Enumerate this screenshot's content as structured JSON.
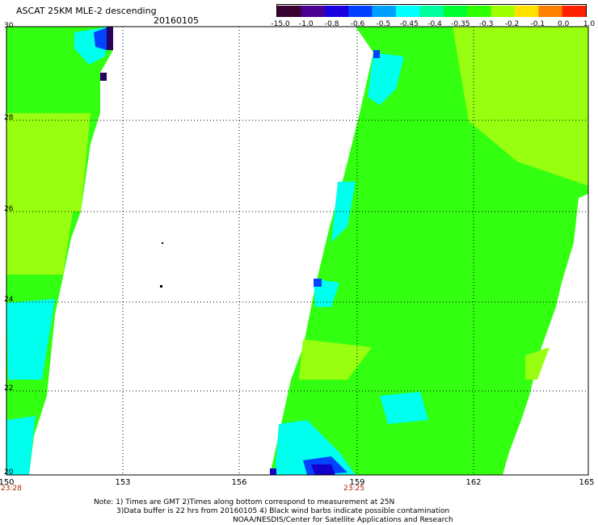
{
  "header": {
    "title": "ASCAT 25KM MLE-2 descending",
    "date": "20160105"
  },
  "colorbar": {
    "labels": [
      "-15.0",
      "-1.0",
      "-0.8",
      "-0.6",
      "-0.5",
      "-0.45",
      "-0.4",
      "-0.35",
      "-0.3",
      "-0.2",
      "-0.1",
      "0.0",
      "1.0"
    ],
    "colors": [
      "#3a0030",
      "#4a0090",
      "#1a00e0",
      "#0040ff",
      "#00a0ff",
      "#00ffff",
      "#00ffa0",
      "#00ff30",
      "#30ff00",
      "#a0ff00",
      "#ffe000",
      "#ff8000",
      "#ff2000"
    ]
  },
  "axes": {
    "x_ticks": [
      "150",
      "153",
      "156",
      "159",
      "162",
      "165"
    ],
    "y_ticks": [
      "30",
      "28",
      "26",
      "24",
      "22",
      "20"
    ],
    "times": [
      "23:28",
      "23:25"
    ]
  },
  "legend_colors": {
    "green": "#33ff11",
    "yellowgreen": "#99ff11",
    "cyan": "#00ffee",
    "blue": "#0044ff",
    "navy": "#1100cc",
    "dark": "#2a0060"
  },
  "notes": {
    "line1": "Note: 1) Times are GMT 2)Times along bottom correspond to measurement at 25N",
    "line2": "3)Data buffer is 22 hrs from 20160105 4) Black wind barbs indicate possible contamination",
    "line3": "NOAA/NESDIS/Center for Satellite Applications and Research"
  }
}
